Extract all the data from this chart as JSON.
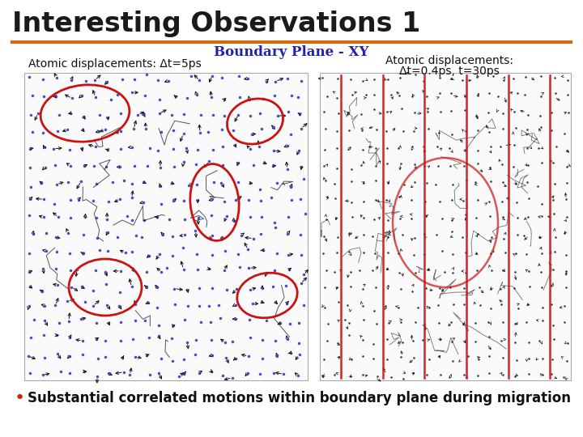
{
  "title": "Interesting Observations 1",
  "title_color": "#1a1a1a",
  "title_fontsize": 24,
  "separator_color": "#d46a10",
  "subtitle": "Boundary Plane - XY",
  "subtitle_color": "#2222aa",
  "subtitle_fontsize": 12,
  "left_label": "Atomic displacements: Δt=5ps",
  "right_label_line1": "Atomic displacements:",
  "right_label_line2": "Δt=0.4ps, t=30ps",
  "label_fontsize": 10,
  "bullet_text": "Substantial correlated motions within boundary plane during migration",
  "bullet_fontsize": 12,
  "bullet_color": "#111111",
  "bullet_marker_color": "#cc2200",
  "bg_color": "#ffffff",
  "dot_color_left": "#3333cc",
  "arrow_color_left": "#111111",
  "dot_color_right": "#111111",
  "arrow_color_right": "#111111",
  "ellipse_color": "#cc1111",
  "vline_color": "#cc1111"
}
